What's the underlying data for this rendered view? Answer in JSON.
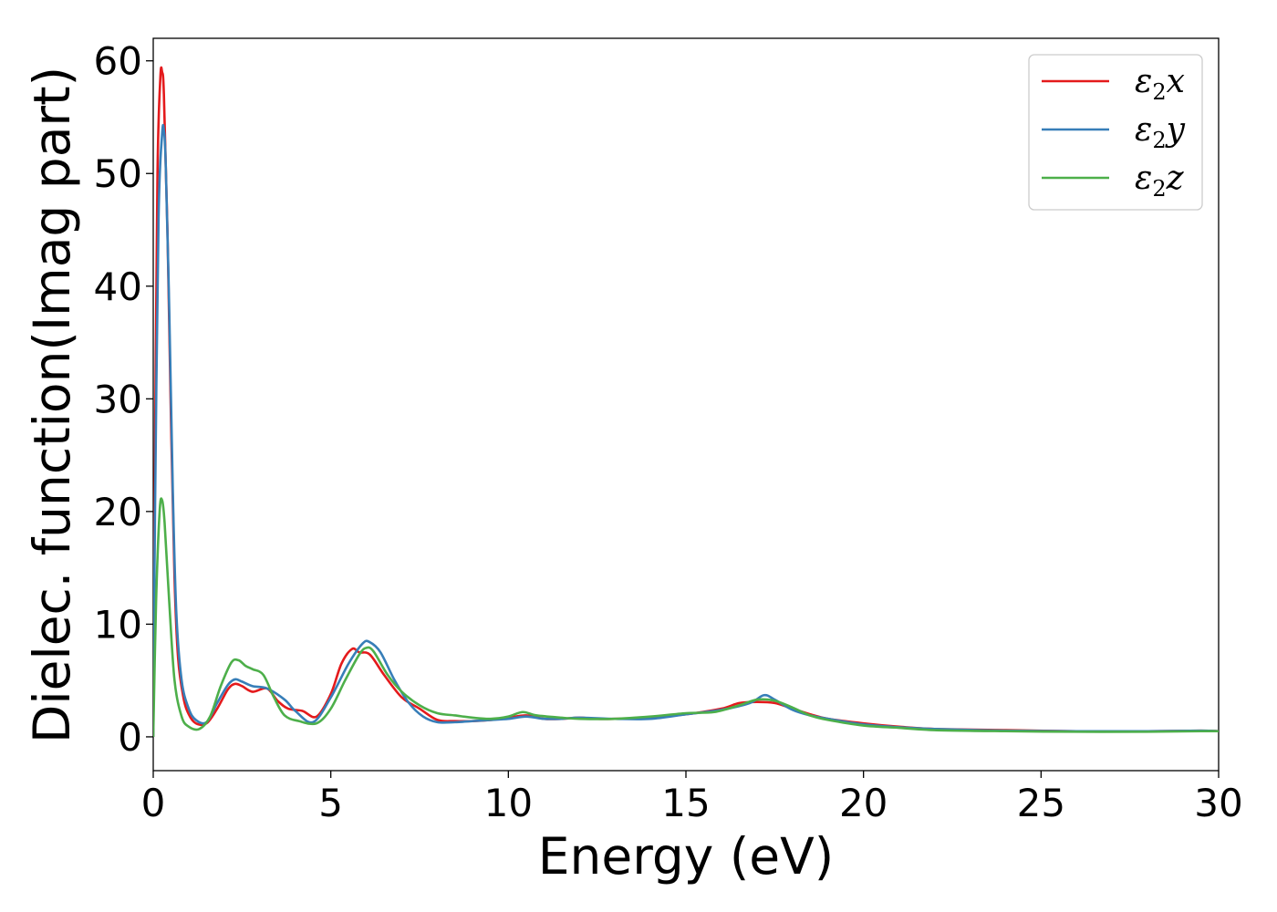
{
  "chart_data": {
    "type": "line",
    "title": "",
    "xlabel": "Energy (eV)",
    "ylabel": "Dielec. function(Imag part)",
    "xlim": [
      0,
      30
    ],
    "ylim": [
      -3,
      62
    ],
    "xticks": [
      0,
      5,
      10,
      15,
      20,
      25,
      30
    ],
    "yticks": [
      0,
      10,
      20,
      30,
      40,
      50,
      60
    ],
    "xtick_labels": [
      "0",
      "5",
      "10",
      "15",
      "20",
      "25",
      "30"
    ],
    "ytick_labels": [
      "0",
      "10",
      "20",
      "30",
      "40",
      "50",
      "60"
    ],
    "grid": false,
    "legend_position": "top-right",
    "series": [
      {
        "name": "ε₂x",
        "legend_base": "ε",
        "legend_sub": "2",
        "legend_suffix": "x",
        "color": "#e41a1c",
        "points": [
          [
            0,
            0
          ],
          [
            0.05,
            25
          ],
          [
            0.12,
            50
          ],
          [
            0.2,
            58.5
          ],
          [
            0.25,
            59
          ],
          [
            0.3,
            57
          ],
          [
            0.4,
            45
          ],
          [
            0.5,
            28
          ],
          [
            0.6,
            14
          ],
          [
            0.7,
            7
          ],
          [
            0.85,
            3.5
          ],
          [
            1.0,
            2
          ],
          [
            1.2,
            1.2
          ],
          [
            1.5,
            1.2
          ],
          [
            1.8,
            2.5
          ],
          [
            2.1,
            4.2
          ],
          [
            2.3,
            4.7
          ],
          [
            2.5,
            4.5
          ],
          [
            2.8,
            4.0
          ],
          [
            3.2,
            4.3
          ],
          [
            3.5,
            3.2
          ],
          [
            3.8,
            2.5
          ],
          [
            4.2,
            2.3
          ],
          [
            4.6,
            1.8
          ],
          [
            5.0,
            3.8
          ],
          [
            5.3,
            6.5
          ],
          [
            5.6,
            7.8
          ],
          [
            5.8,
            7.5
          ],
          [
            6.1,
            7.3
          ],
          [
            6.5,
            5.5
          ],
          [
            7.0,
            3.5
          ],
          [
            7.5,
            2.5
          ],
          [
            8.0,
            1.5
          ],
          [
            8.5,
            1.4
          ],
          [
            9.0,
            1.4
          ],
          [
            9.5,
            1.5
          ],
          [
            10.0,
            1.7
          ],
          [
            10.5,
            1.9
          ],
          [
            11.0,
            1.6
          ],
          [
            11.5,
            1.6
          ],
          [
            12.0,
            1.7
          ],
          [
            12.5,
            1.6
          ],
          [
            13.0,
            1.6
          ],
          [
            14.0,
            1.7
          ],
          [
            15.0,
            2.0
          ],
          [
            16.0,
            2.5
          ],
          [
            16.5,
            3.0
          ],
          [
            17.0,
            3.1
          ],
          [
            17.5,
            3.0
          ],
          [
            18.0,
            2.5
          ],
          [
            18.5,
            2.0
          ],
          [
            19.0,
            1.6
          ],
          [
            20.0,
            1.2
          ],
          [
            21.0,
            0.9
          ],
          [
            22.0,
            0.7
          ],
          [
            24.0,
            0.6
          ],
          [
            26.0,
            0.5
          ],
          [
            28.0,
            0.5
          ],
          [
            29.5,
            0.55
          ],
          [
            30.0,
            0.5
          ]
        ]
      },
      {
        "name": "ε₂y",
        "legend_base": "ε",
        "legend_sub": "2",
        "legend_suffix": "y",
        "color": "#377eb8",
        "points": [
          [
            0,
            0
          ],
          [
            0.05,
            20
          ],
          [
            0.15,
            46
          ],
          [
            0.25,
            53.5
          ],
          [
            0.3,
            53.8
          ],
          [
            0.35,
            51
          ],
          [
            0.45,
            38
          ],
          [
            0.55,
            22
          ],
          [
            0.65,
            11
          ],
          [
            0.8,
            5
          ],
          [
            1.0,
            2.5
          ],
          [
            1.2,
            1.5
          ],
          [
            1.5,
            1.3
          ],
          [
            1.8,
            3.0
          ],
          [
            2.1,
            4.6
          ],
          [
            2.3,
            5.1
          ],
          [
            2.5,
            4.9
          ],
          [
            2.8,
            4.5
          ],
          [
            3.2,
            4.3
          ],
          [
            3.7,
            3.3
          ],
          [
            4.0,
            2.3
          ],
          [
            4.5,
            1.3
          ],
          [
            5.0,
            3.5
          ],
          [
            5.5,
            6.5
          ],
          [
            5.9,
            8.3
          ],
          [
            6.1,
            8.4
          ],
          [
            6.4,
            7.5
          ],
          [
            6.8,
            5.0
          ],
          [
            7.2,
            3.0
          ],
          [
            7.6,
            1.8
          ],
          [
            8.0,
            1.3
          ],
          [
            8.5,
            1.3
          ],
          [
            9.0,
            1.4
          ],
          [
            9.5,
            1.5
          ],
          [
            10.0,
            1.6
          ],
          [
            10.5,
            1.8
          ],
          [
            11.0,
            1.6
          ],
          [
            11.5,
            1.6
          ],
          [
            12.0,
            1.7
          ],
          [
            13.0,
            1.6
          ],
          [
            14.0,
            1.6
          ],
          [
            15.0,
            2.0
          ],
          [
            16.0,
            2.4
          ],
          [
            16.8,
            3.0
          ],
          [
            17.2,
            3.7
          ],
          [
            17.5,
            3.3
          ],
          [
            18.0,
            2.4
          ],
          [
            18.5,
            1.9
          ],
          [
            19.0,
            1.6
          ],
          [
            20.0,
            1.1
          ],
          [
            21.0,
            0.85
          ],
          [
            22.0,
            0.7
          ],
          [
            24.0,
            0.55
          ],
          [
            26.0,
            0.5
          ],
          [
            28.0,
            0.5
          ],
          [
            29.5,
            0.55
          ],
          [
            30.0,
            0.5
          ]
        ]
      },
      {
        "name": "ε₂z",
        "legend_base": "ε",
        "legend_sub": "2",
        "legend_suffix": "z",
        "color": "#4daf4a",
        "points": [
          [
            0,
            0
          ],
          [
            0.08,
            12
          ],
          [
            0.18,
            20
          ],
          [
            0.25,
            21
          ],
          [
            0.32,
            19
          ],
          [
            0.45,
            12
          ],
          [
            0.6,
            5
          ],
          [
            0.8,
            1.8
          ],
          [
            1.0,
            0.9
          ],
          [
            1.3,
            0.7
          ],
          [
            1.6,
            1.8
          ],
          [
            1.9,
            4.5
          ],
          [
            2.2,
            6.6
          ],
          [
            2.4,
            6.8
          ],
          [
            2.6,
            6.3
          ],
          [
            2.8,
            6.0
          ],
          [
            3.1,
            5.5
          ],
          [
            3.4,
            3.5
          ],
          [
            3.7,
            1.9
          ],
          [
            4.1,
            1.4
          ],
          [
            4.6,
            1.2
          ],
          [
            5.0,
            2.5
          ],
          [
            5.4,
            5.0
          ],
          [
            5.8,
            7.3
          ],
          [
            6.0,
            7.9
          ],
          [
            6.2,
            7.6
          ],
          [
            6.6,
            5.5
          ],
          [
            7.0,
            4.0
          ],
          [
            7.5,
            2.8
          ],
          [
            8.0,
            2.1
          ],
          [
            8.5,
            1.9
          ],
          [
            9.0,
            1.7
          ],
          [
            9.5,
            1.6
          ],
          [
            10.0,
            1.8
          ],
          [
            10.4,
            2.2
          ],
          [
            10.8,
            1.9
          ],
          [
            11.5,
            1.7
          ],
          [
            12.0,
            1.6
          ],
          [
            13.0,
            1.6
          ],
          [
            14.0,
            1.8
          ],
          [
            15.0,
            2.1
          ],
          [
            15.8,
            2.2
          ],
          [
            16.5,
            2.8
          ],
          [
            17.0,
            3.3
          ],
          [
            17.5,
            3.2
          ],
          [
            18.0,
            2.6
          ],
          [
            18.5,
            1.9
          ],
          [
            19.0,
            1.5
          ],
          [
            20.0,
            1.0
          ],
          [
            21.0,
            0.8
          ],
          [
            22.0,
            0.6
          ],
          [
            24.0,
            0.5
          ],
          [
            26.0,
            0.45
          ],
          [
            28.0,
            0.45
          ],
          [
            29.5,
            0.5
          ],
          [
            30.0,
            0.5
          ]
        ]
      }
    ]
  }
}
